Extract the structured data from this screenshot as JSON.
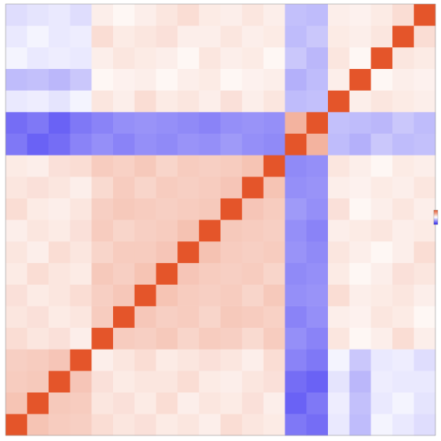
{
  "chart_data": {
    "type": "heatmap",
    "zlim": [
      -1,
      1
    ],
    "colors": {
      "low": "#2a1ef0",
      "mid": "#ffffff",
      "high": "#e4552a"
    },
    "z": [
      [
        1,
        0.35,
        0.3,
        0.28,
        0.2,
        0.15,
        0.18,
        0.12,
        0.15,
        0.1,
        0.2,
        0.15,
        0.12,
        -0.6,
        -0.65,
        -0.1,
        -0.3,
        -0.05,
        -0.1,
        -0.15
      ],
      [
        0.35,
        1,
        0.32,
        0.3,
        0.15,
        0.18,
        0.12,
        0.2,
        0.1,
        0.15,
        0.12,
        0.18,
        0.1,
        -0.7,
        -0.6,
        -0.08,
        -0.28,
        -0.1,
        -0.05,
        -0.12
      ],
      [
        0.3,
        0.32,
        1,
        0.34,
        0.18,
        0.12,
        0.15,
        0.15,
        0.2,
        0.12,
        0.1,
        0.15,
        0.18,
        -0.65,
        -0.7,
        -0.12,
        -0.32,
        -0.08,
        -0.1,
        -0.1
      ],
      [
        0.28,
        0.3,
        0.34,
        1,
        0.1,
        0.15,
        0.2,
        0.12,
        0.15,
        0.18,
        0.15,
        0.1,
        0.2,
        -0.55,
        -0.6,
        -0.05,
        -0.25,
        -0.1,
        -0.08,
        -0.15
      ],
      [
        0.2,
        0.15,
        0.18,
        0.1,
        1,
        0.3,
        0.28,
        0.32,
        0.25,
        0.3,
        0.28,
        0.22,
        0.3,
        -0.5,
        -0.55,
        0.15,
        0.05,
        0.1,
        0.2,
        0.1
      ],
      [
        0.15,
        0.18,
        0.12,
        0.15,
        0.3,
        1,
        0.33,
        0.28,
        0.3,
        0.25,
        0.32,
        0.3,
        0.27,
        -0.55,
        -0.5,
        0.1,
        0.08,
        0.15,
        0.12,
        0.05
      ],
      [
        0.18,
        0.12,
        0.15,
        0.2,
        0.28,
        0.33,
        1,
        0.35,
        0.3,
        0.28,
        0.3,
        0.25,
        0.32,
        -0.5,
        -0.48,
        0.2,
        0.1,
        0.12,
        0.15,
        0.1
      ],
      [
        0.12,
        0.2,
        0.15,
        0.12,
        0.32,
        0.28,
        0.35,
        1,
        0.34,
        0.3,
        0.28,
        0.3,
        0.25,
        -0.52,
        -0.5,
        0.12,
        0.05,
        0.1,
        0.18,
        0.15
      ],
      [
        0.15,
        0.1,
        0.2,
        0.15,
        0.25,
        0.3,
        0.3,
        0.34,
        1,
        0.36,
        0.3,
        0.28,
        0.3,
        -0.48,
        -0.52,
        0.15,
        0.1,
        0.05,
        0.1,
        0.2
      ],
      [
        0.1,
        0.15,
        0.12,
        0.18,
        0.3,
        0.25,
        0.28,
        0.3,
        0.36,
        1,
        0.32,
        0.3,
        0.28,
        -0.5,
        -0.55,
        0.1,
        0.12,
        0.15,
        0.1,
        0.12
      ],
      [
        0.2,
        0.12,
        0.1,
        0.15,
        0.28,
        0.32,
        0.3,
        0.28,
        0.3,
        0.32,
        1,
        0.34,
        0.3,
        -0.45,
        -0.5,
        0.18,
        0.05,
        0.1,
        0.15,
        0.1
      ],
      [
        0.15,
        0.18,
        0.15,
        0.1,
        0.22,
        0.3,
        0.25,
        0.3,
        0.28,
        0.3,
        0.34,
        1,
        0.35,
        -0.5,
        -0.48,
        0.1,
        0.08,
        0.12,
        0.1,
        0.15
      ],
      [
        0.12,
        0.1,
        0.18,
        0.2,
        0.3,
        0.27,
        0.32,
        0.25,
        0.3,
        0.28,
        0.3,
        0.35,
        1,
        -0.52,
        -0.5,
        0.15,
        0.1,
        0.05,
        0.12,
        0.1
      ],
      [
        -0.6,
        -0.7,
        -0.65,
        -0.55,
        -0.5,
        -0.55,
        -0.5,
        -0.52,
        -0.48,
        -0.5,
        -0.45,
        -0.5,
        -0.52,
        1,
        0.45,
        -0.3,
        -0.35,
        -0.25,
        -0.3,
        -0.28
      ],
      [
        -0.65,
        -0.6,
        -0.7,
        -0.6,
        -0.55,
        -0.5,
        -0.48,
        -0.5,
        -0.52,
        -0.55,
        -0.5,
        -0.48,
        -0.5,
        0.45,
        1,
        -0.28,
        -0.3,
        -0.32,
        -0.25,
        -0.3
      ],
      [
        -0.1,
        -0.08,
        -0.12,
        -0.05,
        0.15,
        0.1,
        0.2,
        0.12,
        0.15,
        0.1,
        0.18,
        0.1,
        0.15,
        -0.3,
        -0.28,
        1,
        0.1,
        0.15,
        0.12,
        0.1
      ],
      [
        -0.3,
        -0.28,
        -0.32,
        -0.25,
        0.05,
        0.08,
        0.1,
        0.05,
        0.1,
        0.12,
        0.05,
        0.08,
        0.1,
        -0.35,
        -0.3,
        0.1,
        1,
        0.05,
        0.1,
        0.08
      ],
      [
        -0.05,
        -0.1,
        -0.08,
        -0.1,
        0.1,
        0.15,
        0.12,
        0.1,
        0.05,
        0.15,
        0.1,
        0.12,
        0.05,
        -0.25,
        -0.32,
        0.15,
        0.05,
        1,
        0.15,
        0.12
      ],
      [
        -0.1,
        -0.05,
        -0.1,
        -0.08,
        0.2,
        0.12,
        0.15,
        0.18,
        0.1,
        0.1,
        0.15,
        0.1,
        0.12,
        -0.3,
        -0.25,
        0.12,
        0.1,
        0.15,
        1,
        0.2
      ],
      [
        -0.15,
        -0.12,
        -0.1,
        -0.15,
        0.1,
        0.05,
        0.1,
        0.15,
        0.2,
        0.12,
        0.1,
        0.15,
        0.1,
        -0.28,
        -0.3,
        0.1,
        0.08,
        0.12,
        0.2,
        1
      ]
    ]
  }
}
